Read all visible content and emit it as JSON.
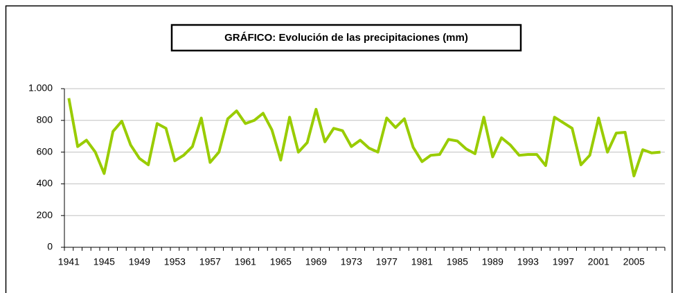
{
  "chart_data": {
    "type": "line",
    "title": "GRÁFICO: Evolución de las precipitaciones (mm)",
    "categories": [
      "1941",
      null,
      null,
      null,
      "1945",
      null,
      null,
      null,
      "1949",
      null,
      null,
      null,
      "1953",
      null,
      null,
      null,
      "1957",
      null,
      null,
      null,
      "1961",
      null,
      null,
      null,
      "1965",
      null,
      null,
      null,
      "1969",
      null,
      null,
      null,
      "1973",
      null,
      null,
      null,
      "1977",
      null,
      null,
      null,
      "1981",
      null,
      null,
      null,
      "1985",
      null,
      null,
      null,
      "1989",
      null,
      null,
      null,
      "1993",
      null,
      null,
      null,
      "1997",
      null,
      null,
      null,
      "2001",
      null,
      null,
      null,
      "2005",
      null,
      null,
      null
    ],
    "values": [
      940,
      635,
      675,
      600,
      465,
      730,
      795,
      645,
      560,
      520,
      780,
      750,
      545,
      580,
      635,
      815,
      535,
      600,
      810,
      860,
      780,
      800,
      845,
      740,
      550,
      820,
      600,
      660,
      870,
      665,
      750,
      735,
      635,
      675,
      625,
      600,
      815,
      755,
      810,
      630,
      540,
      580,
      585,
      680,
      670,
      620,
      590,
      820,
      570,
      690,
      645,
      580,
      585,
      585,
      515,
      820,
      785,
      750,
      520,
      580,
      815,
      600,
      720,
      725,
      450,
      615,
      595,
      600
    ],
    "color": "#99cc00",
    "ylim": [
      0,
      1000
    ],
    "yticks": [
      0,
      200,
      400,
      600,
      800,
      {
        "value": 1000,
        "label": "1.000"
      }
    ],
    "grid": true
  }
}
